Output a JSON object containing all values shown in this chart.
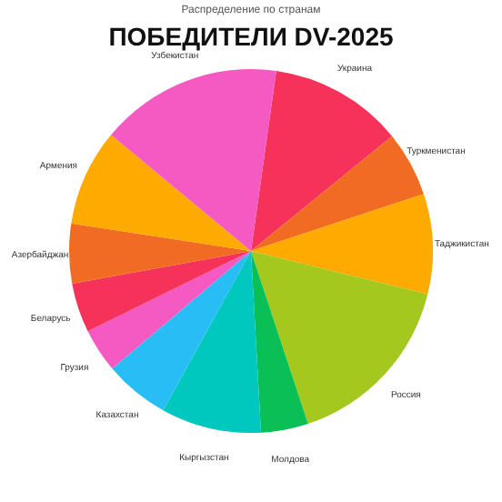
{
  "chart_data": {
    "type": "pie",
    "title": "ПОБЕДИТЕЛИ DV-2025",
    "subtitle": "Распределение по странам",
    "categories": [
      "Украина",
      "Туркменистан",
      "Таджикистан",
      "Россия",
      "Молдова",
      "Кыргызстан",
      "Казахстан",
      "Грузия",
      "Беларусь",
      "Азербайджан",
      "Армения",
      "Узбекистан"
    ],
    "values": [
      11.9,
      5.8,
      8.9,
      16.1,
      4.2,
      8.9,
      5.8,
      3.9,
      4.4,
      5.3,
      8.6,
      16.2
    ],
    "colors": [
      "#f5325a",
      "#f26b22",
      "#ffaa00",
      "#a5c81e",
      "#0abf55",
      "#00c8be",
      "#28bef5",
      "#f55ac3",
      "#f5325a",
      "#f26b22",
      "#ffaa00",
      "#f55ac3"
    ]
  }
}
